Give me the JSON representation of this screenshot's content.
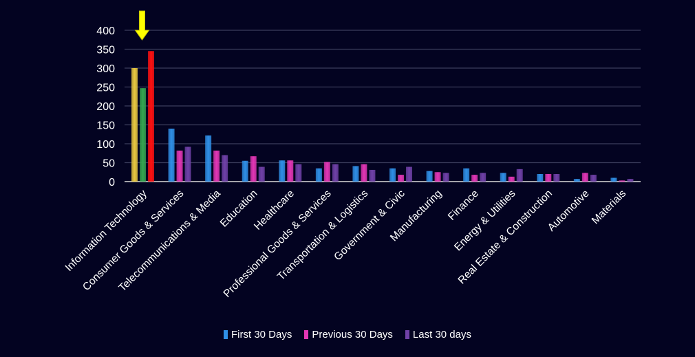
{
  "chart_data": {
    "type": "bar",
    "categories": [
      "Information Technology",
      "Consumer Goods &  Services",
      "Telecommunications & Media",
      "Education",
      "Healthcare",
      "Professional Goods & Services",
      "Transportation & Logistics",
      "Government & Civic",
      "Manufacturing",
      "Finance",
      "Energy & Utilities",
      "Real Estate & Construction",
      "Automotive",
      "Materials"
    ],
    "series": [
      {
        "name": "First 30 Days",
        "color": "#2f8fe6",
        "values": [
          300,
          140,
          122,
          55,
          56,
          35,
          41,
          35,
          28,
          35,
          23,
          20,
          7,
          10
        ]
      },
      {
        "name": "Previous 30 Days",
        "color": "#e236b5",
        "values": [
          0,
          82,
          82,
          67,
          56,
          52,
          46,
          18,
          25,
          18,
          13,
          20,
          23,
          3
        ]
      },
      {
        "name": "Last 30 days",
        "color": "#7041a8",
        "values": [
          0,
          92,
          70,
          39,
          46,
          46,
          31,
          39,
          23,
          23,
          33,
          20,
          18,
          7
        ]
      }
    ],
    "highlight": {
      "category_index": 0,
      "values": [
        300,
        247,
        345
      ],
      "colors": [
        "#e8c840",
        "#35a650",
        "#ff1010"
      ],
      "arrow_color": "#ffff00"
    },
    "ylim": [
      0,
      400
    ],
    "yticks": [
      "0",
      "50",
      "100",
      "150",
      "200",
      "250",
      "300",
      "350",
      "400"
    ],
    "grid": true,
    "legend_position": "bottom"
  }
}
